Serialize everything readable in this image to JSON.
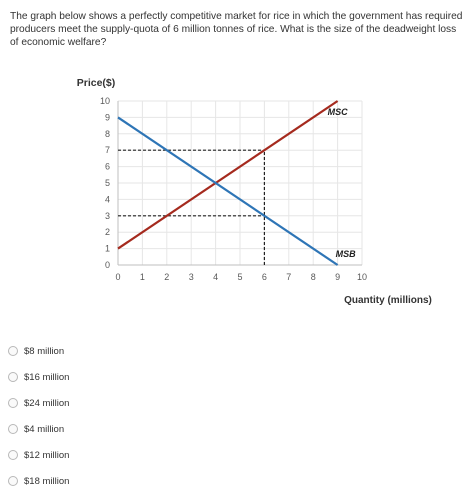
{
  "question": {
    "text": "The graph below shows a perfectly competitive market for rice in which the government has required producers meet the supply-quota of 6 million tonnes of rice. What is the size of the deadweight loss of economic welfare?"
  },
  "chart_data": {
    "type": "line",
    "title": "",
    "ylabel": "Price($)",
    "xlabel": "Quantity (millions)",
    "xlim": [
      0,
      10
    ],
    "ylim": [
      0,
      10
    ],
    "x_ticks": [
      "0",
      "1",
      "2",
      "3",
      "4",
      "5",
      "6",
      "7",
      "8",
      "9",
      "10"
    ],
    "y_ticks": [
      "0",
      "1",
      "2",
      "3",
      "4",
      "5",
      "6",
      "7",
      "8",
      "9",
      "10"
    ],
    "grid": true,
    "series": [
      {
        "name": "MSC",
        "color": "#a52a1e",
        "x": [
          0,
          9
        ],
        "y": [
          1,
          10
        ]
      },
      {
        "name": "MSB",
        "color": "#2e75b6",
        "x": [
          0,
          9
        ],
        "y": [
          9,
          0
        ]
      }
    ],
    "reference_lines": [
      {
        "x1": 0,
        "y1": 7,
        "x2": 6,
        "y2": 7
      },
      {
        "x1": 0,
        "y1": 3,
        "x2": 6,
        "y2": 3
      },
      {
        "x1": 6,
        "y1": 0,
        "x2": 6,
        "y2": 7
      }
    ]
  },
  "answers": [
    {
      "label": "$8 million"
    },
    {
      "label": "$16 million"
    },
    {
      "label": "$24 million"
    },
    {
      "label": "$4 million"
    },
    {
      "label": "$12 million"
    },
    {
      "label": "$18 million"
    }
  ]
}
